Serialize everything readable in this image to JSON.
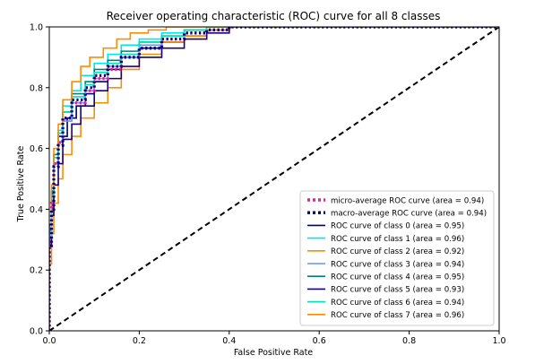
{
  "chart_data": {
    "type": "line",
    "title": "Receiver operating characteristic (ROC) curve for all 8 classes",
    "xlabel": "False Positive Rate",
    "ylabel": "True Positive Rate",
    "xlim": [
      0.0,
      1.0
    ],
    "ylim": [
      0.0,
      1.0
    ],
    "xticks": [
      "0.0",
      "0.2",
      "0.4",
      "0.6",
      "0.8",
      "1.0"
    ],
    "yticks": [
      "0.0",
      "0.2",
      "0.4",
      "0.6",
      "0.8",
      "1.0"
    ],
    "grid": false,
    "legend_position": "lower-right",
    "series": [
      {
        "name": "micro-average ROC curve (area = 0.94)",
        "color": "#ff1493",
        "style": "dotted",
        "x": [
          0,
          0.005,
          0.01,
          0.02,
          0.03,
          0.05,
          0.08,
          0.1,
          0.13,
          0.16,
          0.2,
          0.25,
          0.3,
          0.35,
          0.4,
          0.5,
          0.6,
          0.8,
          1.0
        ],
        "y": [
          0,
          0.3,
          0.42,
          0.55,
          0.62,
          0.7,
          0.75,
          0.79,
          0.83,
          0.86,
          0.9,
          0.93,
          0.96,
          0.98,
          0.99,
          1.0,
          1.0,
          1.0,
          1.0
        ]
      },
      {
        "name": "macro-average ROC curve (area = 0.94)",
        "color": "#000080",
        "style": "dotted",
        "x": [
          0,
          0.005,
          0.01,
          0.02,
          0.03,
          0.05,
          0.08,
          0.1,
          0.13,
          0.16,
          0.2,
          0.25,
          0.3,
          0.35,
          0.4,
          0.5,
          0.6,
          0.8,
          1.0
        ],
        "y": [
          0,
          0.28,
          0.4,
          0.54,
          0.61,
          0.7,
          0.76,
          0.8,
          0.84,
          0.87,
          0.9,
          0.93,
          0.96,
          0.98,
          0.99,
          1.0,
          1.0,
          1.0,
          1.0
        ]
      },
      {
        "name": "ROC curve of class 0 (area = 0.95)",
        "color": "#000080",
        "style": "solid",
        "x": [
          0,
          0.005,
          0.01,
          0.02,
          0.04,
          0.06,
          0.08,
          0.1,
          0.13,
          0.16,
          0.2,
          0.25,
          0.3,
          0.35,
          0.4,
          0.45,
          1.0
        ],
        "y": [
          0,
          0.35,
          0.45,
          0.55,
          0.64,
          0.7,
          0.74,
          0.78,
          0.82,
          0.86,
          0.9,
          0.93,
          0.95,
          0.97,
          0.99,
          1.0,
          1.0
        ]
      },
      {
        "name": "ROC curve of class 1 (area = 0.96)",
        "color": "#00e5ee",
        "style": "solid",
        "x": [
          0,
          0.005,
          0.01,
          0.02,
          0.03,
          0.05,
          0.07,
          0.1,
          0.13,
          0.16,
          0.2,
          0.25,
          0.3,
          0.35,
          0.4,
          1.0
        ],
        "y": [
          0,
          0.32,
          0.46,
          0.58,
          0.66,
          0.74,
          0.79,
          0.84,
          0.88,
          0.91,
          0.94,
          0.96,
          0.98,
          0.99,
          1.0,
          1.0
        ]
      },
      {
        "name": "ROC curve of class 2 (area = 0.92)",
        "color": "#ff8c00",
        "style": "solid",
        "x": [
          0,
          0.005,
          0.01,
          0.02,
          0.03,
          0.05,
          0.07,
          0.1,
          0.13,
          0.16,
          0.2,
          0.25,
          0.3,
          0.35,
          0.4,
          0.5,
          1.0
        ],
        "y": [
          0,
          0.22,
          0.32,
          0.42,
          0.5,
          0.58,
          0.64,
          0.7,
          0.75,
          0.8,
          0.86,
          0.91,
          0.95,
          0.97,
          0.99,
          1.0,
          1.0
        ]
      },
      {
        "name": "ROC curve of class 3 (area = 0.94)",
        "color": "#6495ed",
        "style": "solid",
        "x": [
          0,
          0.005,
          0.01,
          0.02,
          0.03,
          0.05,
          0.08,
          0.1,
          0.13,
          0.16,
          0.2,
          0.25,
          0.3,
          0.35,
          0.4,
          1.0
        ],
        "y": [
          0,
          0.3,
          0.43,
          0.55,
          0.62,
          0.69,
          0.75,
          0.79,
          0.83,
          0.87,
          0.9,
          0.94,
          0.97,
          0.99,
          1.0,
          1.0
        ]
      },
      {
        "name": "ROC curve of class 4 (area = 0.95)",
        "color": "#008080",
        "style": "solid",
        "x": [
          0,
          0.005,
          0.01,
          0.02,
          0.03,
          0.05,
          0.08,
          0.1,
          0.13,
          0.16,
          0.2,
          0.25,
          0.3,
          0.35,
          0.4,
          1.0
        ],
        "y": [
          0,
          0.33,
          0.46,
          0.58,
          0.65,
          0.72,
          0.78,
          0.82,
          0.86,
          0.89,
          0.92,
          0.95,
          0.97,
          0.99,
          1.0,
          1.0
        ]
      },
      {
        "name": "ROC curve of class 5 (area = 0.93)",
        "color": "#1a0080",
        "style": "solid",
        "x": [
          0,
          0.005,
          0.01,
          0.02,
          0.03,
          0.05,
          0.07,
          0.1,
          0.13,
          0.16,
          0.2,
          0.25,
          0.3,
          0.35,
          0.4,
          0.45,
          1.0
        ],
        "y": [
          0,
          0.28,
          0.38,
          0.48,
          0.55,
          0.63,
          0.68,
          0.74,
          0.79,
          0.83,
          0.87,
          0.9,
          0.93,
          0.96,
          0.98,
          1.0,
          1.0
        ]
      },
      {
        "name": "ROC curve of class 6 (area = 0.94)",
        "color": "#00e5b0",
        "style": "solid",
        "x": [
          0,
          0.005,
          0.01,
          0.02,
          0.03,
          0.05,
          0.08,
          0.1,
          0.13,
          0.16,
          0.2,
          0.25,
          0.3,
          0.35,
          0.4,
          1.0
        ],
        "y": [
          0,
          0.31,
          0.44,
          0.57,
          0.65,
          0.72,
          0.77,
          0.81,
          0.85,
          0.88,
          0.91,
          0.95,
          0.97,
          0.99,
          1.0,
          1.0
        ]
      },
      {
        "name": "ROC curve of class 7 (area = 0.96)",
        "color": "#ff8c00",
        "style": "solid",
        "x": [
          0,
          0.005,
          0.01,
          0.02,
          0.03,
          0.05,
          0.07,
          0.09,
          0.12,
          0.15,
          0.18,
          0.22,
          0.26,
          0.3,
          1.0
        ],
        "y": [
          0,
          0.34,
          0.48,
          0.6,
          0.68,
          0.76,
          0.82,
          0.87,
          0.9,
          0.93,
          0.96,
          0.98,
          0.99,
          1.0,
          1.0
        ]
      }
    ],
    "reference_line": {
      "x": [
        0,
        1
      ],
      "y": [
        0,
        1
      ],
      "color": "#000000",
      "style": "dashed"
    }
  }
}
